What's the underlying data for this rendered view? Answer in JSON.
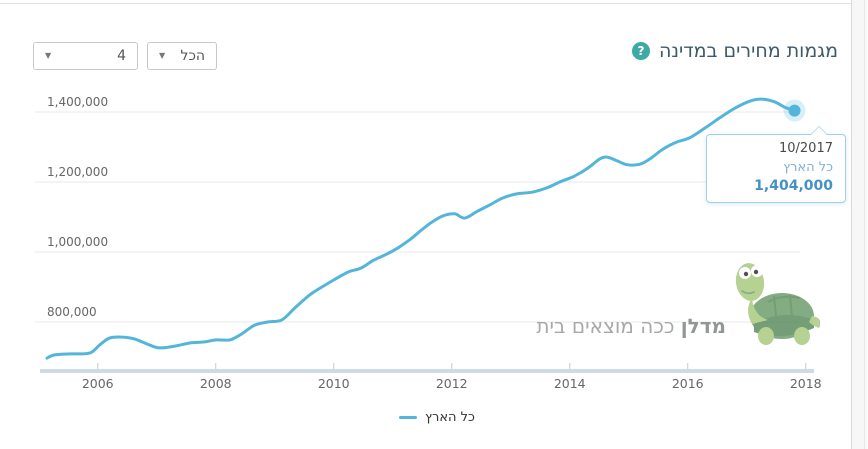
{
  "panel": {
    "title": "מגמות מחירים במדינה"
  },
  "icons": {
    "help": "?",
    "dropdown_arrow": "▼"
  },
  "filters": {
    "rooms": {
      "value": "4"
    },
    "scope": {
      "value": "הכל"
    }
  },
  "tooltip": {
    "date": "10/2017",
    "series": "כל הארץ",
    "value": "1,404,000"
  },
  "legend": {
    "label": "כל הארץ"
  },
  "watermark": {
    "brand": "מדלן",
    "tagline": " ככה מוצאים בית"
  },
  "colors": {
    "line": "#54b5da",
    "marker_halo": "rgba(84,181,218,0.22)",
    "grid": "#e8e8e8",
    "axis_band": "#cfdbe2",
    "tick": "#c9c9c9",
    "help_badge": "#3faaa3",
    "tooltip_border": "#9ed2ea",
    "tooltip_value": "#4292c6"
  },
  "chart_data": {
    "type": "line",
    "title": "מגמות מחירים במדינה",
    "xlabel": "",
    "ylabel": "",
    "xlim": [
      2005.1,
      2018.2
    ],
    "ylim": [
      690000,
      1460000
    ],
    "grid": "horizontal",
    "legend_position": "bottom-center",
    "x_ticks": [
      2006,
      2008,
      2010,
      2012,
      2014,
      2016,
      2018
    ],
    "y_ticks": [
      800000,
      1000000,
      1200000,
      1400000
    ],
    "y_tick_labels": [
      "800,000",
      "1,000,000",
      "1,200,000",
      "1,400,000"
    ],
    "highlight": {
      "x": 2017.81,
      "y": 1404000,
      "date_label": "10/2017",
      "series_label": "כל הארץ",
      "value_label": "1,404,000"
    },
    "series": [
      {
        "name": "כל הארץ",
        "color": "#54b5da",
        "points": [
          [
            2005.14,
            697000
          ],
          [
            2005.27,
            706000
          ],
          [
            2005.53,
            709000
          ],
          [
            2005.86,
            711000
          ],
          [
            2006.03,
            734000
          ],
          [
            2006.2,
            754000
          ],
          [
            2006.41,
            757000
          ],
          [
            2006.63,
            751000
          ],
          [
            2006.88,
            734000
          ],
          [
            2007.05,
            726000
          ],
          [
            2007.31,
            731000
          ],
          [
            2007.56,
            740000
          ],
          [
            2007.81,
            743000
          ],
          [
            2008.0,
            749000
          ],
          [
            2008.24,
            749000
          ],
          [
            2008.44,
            766000
          ],
          [
            2008.66,
            791000
          ],
          [
            2008.88,
            800000
          ],
          [
            2009.12,
            806000
          ],
          [
            2009.34,
            840000
          ],
          [
            2009.59,
            877000
          ],
          [
            2009.8,
            900000
          ],
          [
            2010.0,
            920000
          ],
          [
            2010.25,
            943000
          ],
          [
            2010.46,
            954000
          ],
          [
            2010.68,
            977000
          ],
          [
            2010.9,
            994000
          ],
          [
            2011.08,
            1011000
          ],
          [
            2011.28,
            1034000
          ],
          [
            2011.49,
            1063000
          ],
          [
            2011.67,
            1086000
          ],
          [
            2011.85,
            1103000
          ],
          [
            2012.05,
            1109000
          ],
          [
            2012.22,
            1097000
          ],
          [
            2012.44,
            1117000
          ],
          [
            2012.64,
            1134000
          ],
          [
            2012.86,
            1154000
          ],
          [
            2013.1,
            1166000
          ],
          [
            2013.36,
            1171000
          ],
          [
            2013.61,
            1183000
          ],
          [
            2013.83,
            1200000
          ],
          [
            2014.08,
            1217000
          ],
          [
            2014.31,
            1240000
          ],
          [
            2014.51,
            1266000
          ],
          [
            2014.64,
            1271000
          ],
          [
            2014.81,
            1260000
          ],
          [
            2014.98,
            1249000
          ],
          [
            2015.19,
            1251000
          ],
          [
            2015.36,
            1266000
          ],
          [
            2015.58,
            1294000
          ],
          [
            2015.81,
            1314000
          ],
          [
            2016.03,
            1326000
          ],
          [
            2016.29,
            1354000
          ],
          [
            2016.54,
            1383000
          ],
          [
            2016.8,
            1411000
          ],
          [
            2017.05,
            1431000
          ],
          [
            2017.25,
            1437000
          ],
          [
            2017.47,
            1429000
          ],
          [
            2017.64,
            1414000
          ],
          [
            2017.81,
            1404000
          ]
        ]
      }
    ]
  }
}
